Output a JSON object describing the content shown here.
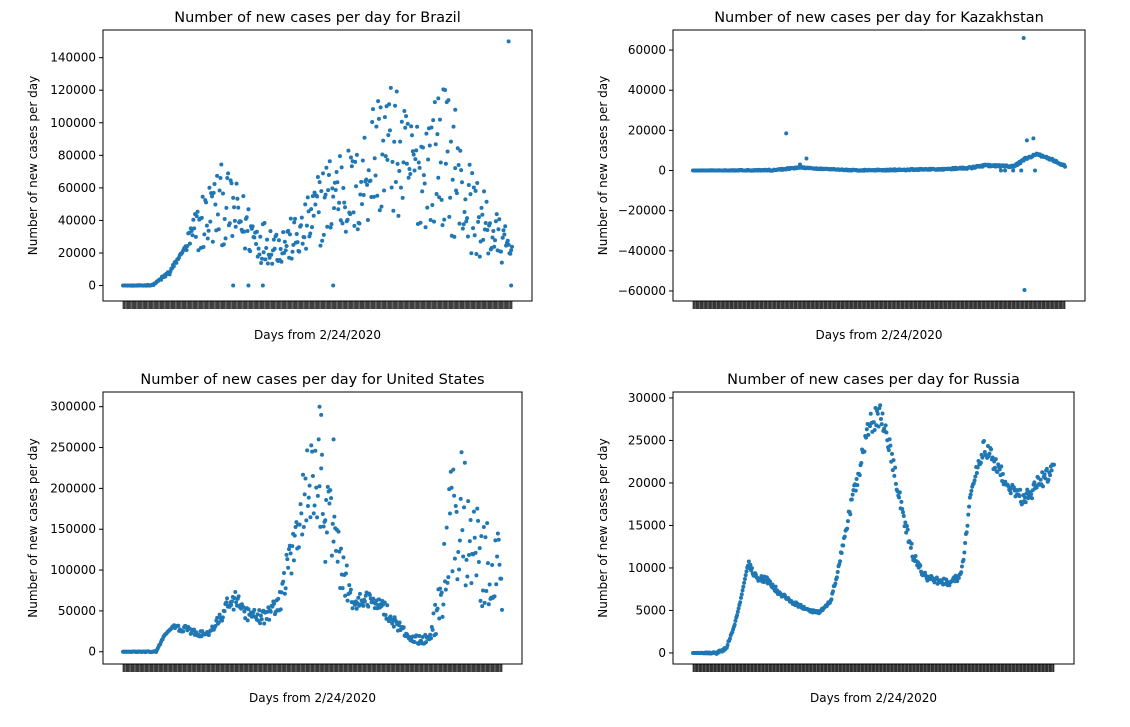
{
  "chart_data": [
    {
      "type": "scatter",
      "title": "Number of new cases per day for Brazil",
      "xlabel": "Days from 2/24/2020",
      "ylabel": "Number of new cases per day",
      "ylim": [
        -9500,
        157000
      ],
      "yticks": [
        0,
        20000,
        40000,
        60000,
        80000,
        100000,
        120000,
        140000
      ],
      "ytick_labels": [
        "0",
        "20000",
        "40000",
        "60000",
        "80000",
        "100000",
        "120000",
        "140000"
      ],
      "n_days": 459,
      "color": "#1f77b4",
      "grid": false,
      "anchors": [
        [
          0,
          0
        ],
        [
          20,
          0
        ],
        [
          35,
          300
        ],
        [
          55,
          8000
        ],
        [
          75,
          25000
        ],
        [
          95,
          40000
        ],
        [
          115,
          50000
        ],
        [
          135,
          42000
        ],
        [
          160,
          28000
        ],
        [
          185,
          25000
        ],
        [
          210,
          30000
        ],
        [
          235,
          50000
        ],
        [
          255,
          60000
        ],
        [
          275,
          55000
        ],
        [
          295,
          80000
        ],
        [
          315,
          85000
        ],
        [
          335,
          72000
        ],
        [
          355,
          72000
        ],
        [
          380,
          80000
        ],
        [
          400,
          55000
        ],
        [
          420,
          40000
        ],
        [
          440,
          30000
        ],
        [
          459,
          20000
        ]
      ],
      "spread": [
        [
          0,
          0
        ],
        [
          40,
          400
        ],
        [
          55,
          2000
        ],
        [
          75,
          0.25
        ],
        [
          90,
          0.5
        ],
        [
          350,
          0.5
        ],
        [
          410,
          0.6
        ],
        [
          459,
          0.5
        ]
      ],
      "outliers": [
        [
          130,
          0
        ],
        [
          148,
          0
        ],
        [
          165,
          0
        ],
        [
          248,
          0
        ],
        [
          372,
          115000
        ],
        [
          392,
          108000
        ],
        [
          455,
          150000
        ],
        [
          458,
          0
        ]
      ]
    },
    {
      "type": "scatter",
      "title": "Number of new cases per day for Kazakhstan",
      "xlabel": "Days from 2/24/2020",
      "ylabel": "Number of new cases per day",
      "ylim": [
        -65000,
        70000
      ],
      "yticks": [
        -60000,
        -40000,
        -20000,
        0,
        20000,
        40000,
        60000
      ],
      "ytick_labels": [
        "−60000",
        "−40000",
        "−20000",
        "0",
        "20000",
        "40000",
        "60000"
      ],
      "n_days": 459,
      "color": "#1f77b4",
      "grid": false,
      "anchors": [
        [
          0,
          0
        ],
        [
          100,
          200
        ],
        [
          130,
          1500
        ],
        [
          160,
          800
        ],
        [
          200,
          100
        ],
        [
          250,
          300
        ],
        [
          300,
          600
        ],
        [
          340,
          1200
        ],
        [
          360,
          2500
        ],
        [
          395,
          2000
        ],
        [
          400,
          3000
        ],
        [
          410,
          6000
        ],
        [
          425,
          8000
        ],
        [
          440,
          6000
        ],
        [
          459,
          2000
        ]
      ],
      "spread": [
        [
          0,
          0
        ],
        [
          120,
          400
        ],
        [
          160,
          200
        ],
        [
          459,
          600
        ]
      ],
      "outliers": [
        [
          115,
          18500
        ],
        [
          132,
          3000
        ],
        [
          140,
          6000
        ],
        [
          380,
          0
        ],
        [
          385,
          0
        ],
        [
          395,
          0
        ],
        [
          405,
          0
        ],
        [
          408,
          66000
        ],
        [
          409,
          -59500
        ],
        [
          412,
          15000
        ],
        [
          420,
          16000
        ],
        [
          422,
          0
        ]
      ]
    },
    {
      "type": "scatter",
      "title": "Number of new cases per day for United States",
      "xlabel": "Days from 2/24/2020",
      "ylabel": "Number of new cases per day",
      "ylim": [
        -15000,
        318000
      ],
      "yticks": [
        0,
        50000,
        100000,
        150000,
        200000,
        250000,
        300000
      ],
      "ytick_labels": [
        "0",
        "50000",
        "100000",
        "150000",
        "200000",
        "250000",
        "300000"
      ],
      "n_days": 459,
      "color": "#1f77b4",
      "grid": false,
      "anchors": [
        [
          0,
          0
        ],
        [
          40,
          0
        ],
        [
          50,
          20000
        ],
        [
          60,
          30000
        ],
        [
          75,
          28000
        ],
        [
          90,
          22000
        ],
        [
          105,
          22000
        ],
        [
          120,
          45000
        ],
        [
          130,
          65000
        ],
        [
          140,
          60000
        ],
        [
          150,
          45000
        ],
        [
          170,
          42000
        ],
        [
          190,
          60000
        ],
        [
          205,
          130000
        ],
        [
          220,
          190000
        ],
        [
          235,
          210000
        ],
        [
          250,
          180000
        ],
        [
          262,
          110000
        ],
        [
          280,
          60000
        ],
        [
          300,
          65000
        ],
        [
          315,
          55000
        ],
        [
          330,
          35000
        ],
        [
          350,
          15000
        ],
        [
          370,
          15000
        ],
        [
          385,
          60000
        ],
        [
          400,
          170000
        ],
        [
          420,
          150000
        ],
        [
          440,
          110000
        ],
        [
          459,
          100000
        ]
      ],
      "spread": [
        [
          0,
          0
        ],
        [
          45,
          1000
        ],
        [
          60,
          0.15
        ],
        [
          180,
          0.2
        ],
        [
          200,
          0.25
        ],
        [
          240,
          0.3
        ],
        [
          260,
          0.3
        ],
        [
          290,
          0.15
        ],
        [
          330,
          0.2
        ],
        [
          380,
          0.5
        ],
        [
          459,
          0.6
        ]
      ],
      "outliers": [
        [
          238,
          300000
        ],
        [
          240,
          290000
        ],
        [
          245,
          110000
        ],
        [
          255,
          260000
        ]
      ]
    },
    {
      "type": "scatter",
      "title": "Number of new cases per day for Russia",
      "xlabel": "Days from 2/24/2020",
      "ylabel": "Number of new cases per day",
      "ylim": [
        -1300,
        30700
      ],
      "yticks": [
        0,
        5000,
        10000,
        15000,
        20000,
        25000,
        30000
      ],
      "ytick_labels": [
        "0",
        "5000",
        "10000",
        "15000",
        "20000",
        "25000",
        "30000"
      ],
      "n_days": 459,
      "color": "#1f77b4",
      "grid": false,
      "anchors": [
        [
          0,
          0
        ],
        [
          30,
          0
        ],
        [
          42,
          500
        ],
        [
          52,
          3000
        ],
        [
          60,
          6000
        ],
        [
          70,
          10500
        ],
        [
          80,
          9000
        ],
        [
          95,
          8500
        ],
        [
          110,
          7000
        ],
        [
          130,
          5800
        ],
        [
          150,
          4900
        ],
        [
          160,
          4800
        ],
        [
          175,
          6000
        ],
        [
          185,
          10000
        ],
        [
          200,
          17000
        ],
        [
          215,
          23000
        ],
        [
          225,
          27000
        ],
        [
          240,
          28000
        ],
        [
          255,
          22000
        ],
        [
          265,
          17000
        ],
        [
          280,
          11500
        ],
        [
          295,
          9000
        ],
        [
          310,
          8500
        ],
        [
          325,
          8300
        ],
        [
          340,
          9000
        ],
        [
          345,
          12000
        ],
        [
          355,
          20000
        ],
        [
          370,
          24500
        ],
        [
          385,
          22000
        ],
        [
          400,
          20000
        ],
        [
          420,
          18000
        ],
        [
          440,
          20000
        ],
        [
          459,
          21500
        ]
      ],
      "spread": [
        [
          0,
          0
        ],
        [
          40,
          150
        ],
        [
          70,
          0.05
        ],
        [
          160,
          0.03
        ],
        [
          230,
          0.05
        ],
        [
          300,
          0.05
        ],
        [
          360,
          0.04
        ],
        [
          459,
          0.05
        ]
      ],
      "outliers": []
    }
  ]
}
